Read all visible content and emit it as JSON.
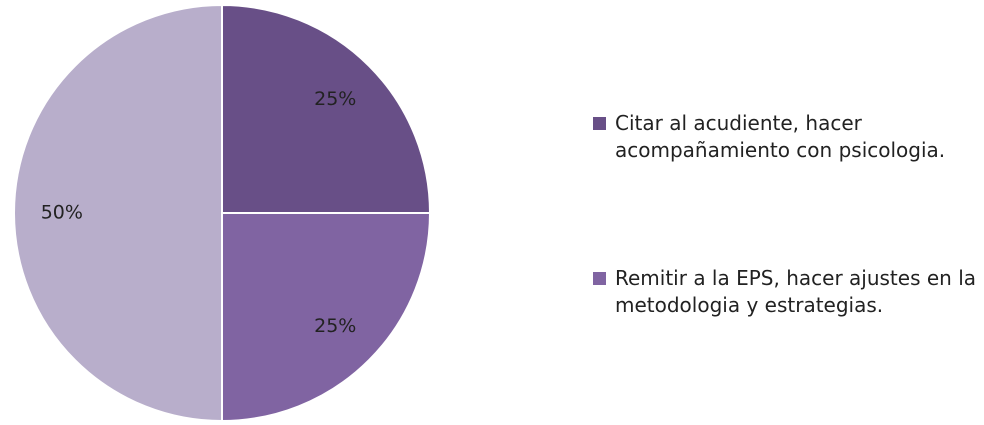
{
  "chart_data": {
    "type": "pie",
    "categories": [
      "Citar al acudiente, hacer acompañamiento con psicologia.",
      "Remitir a la EPS, hacer ajustes en la metodologia y estrategias.",
      null
    ],
    "values": [
      25,
      25,
      50
    ],
    "value_labels": [
      "25%",
      "25%",
      "50%"
    ],
    "colors": [
      "#684f87",
      "#8064a2",
      "#b8aecb"
    ]
  }
}
